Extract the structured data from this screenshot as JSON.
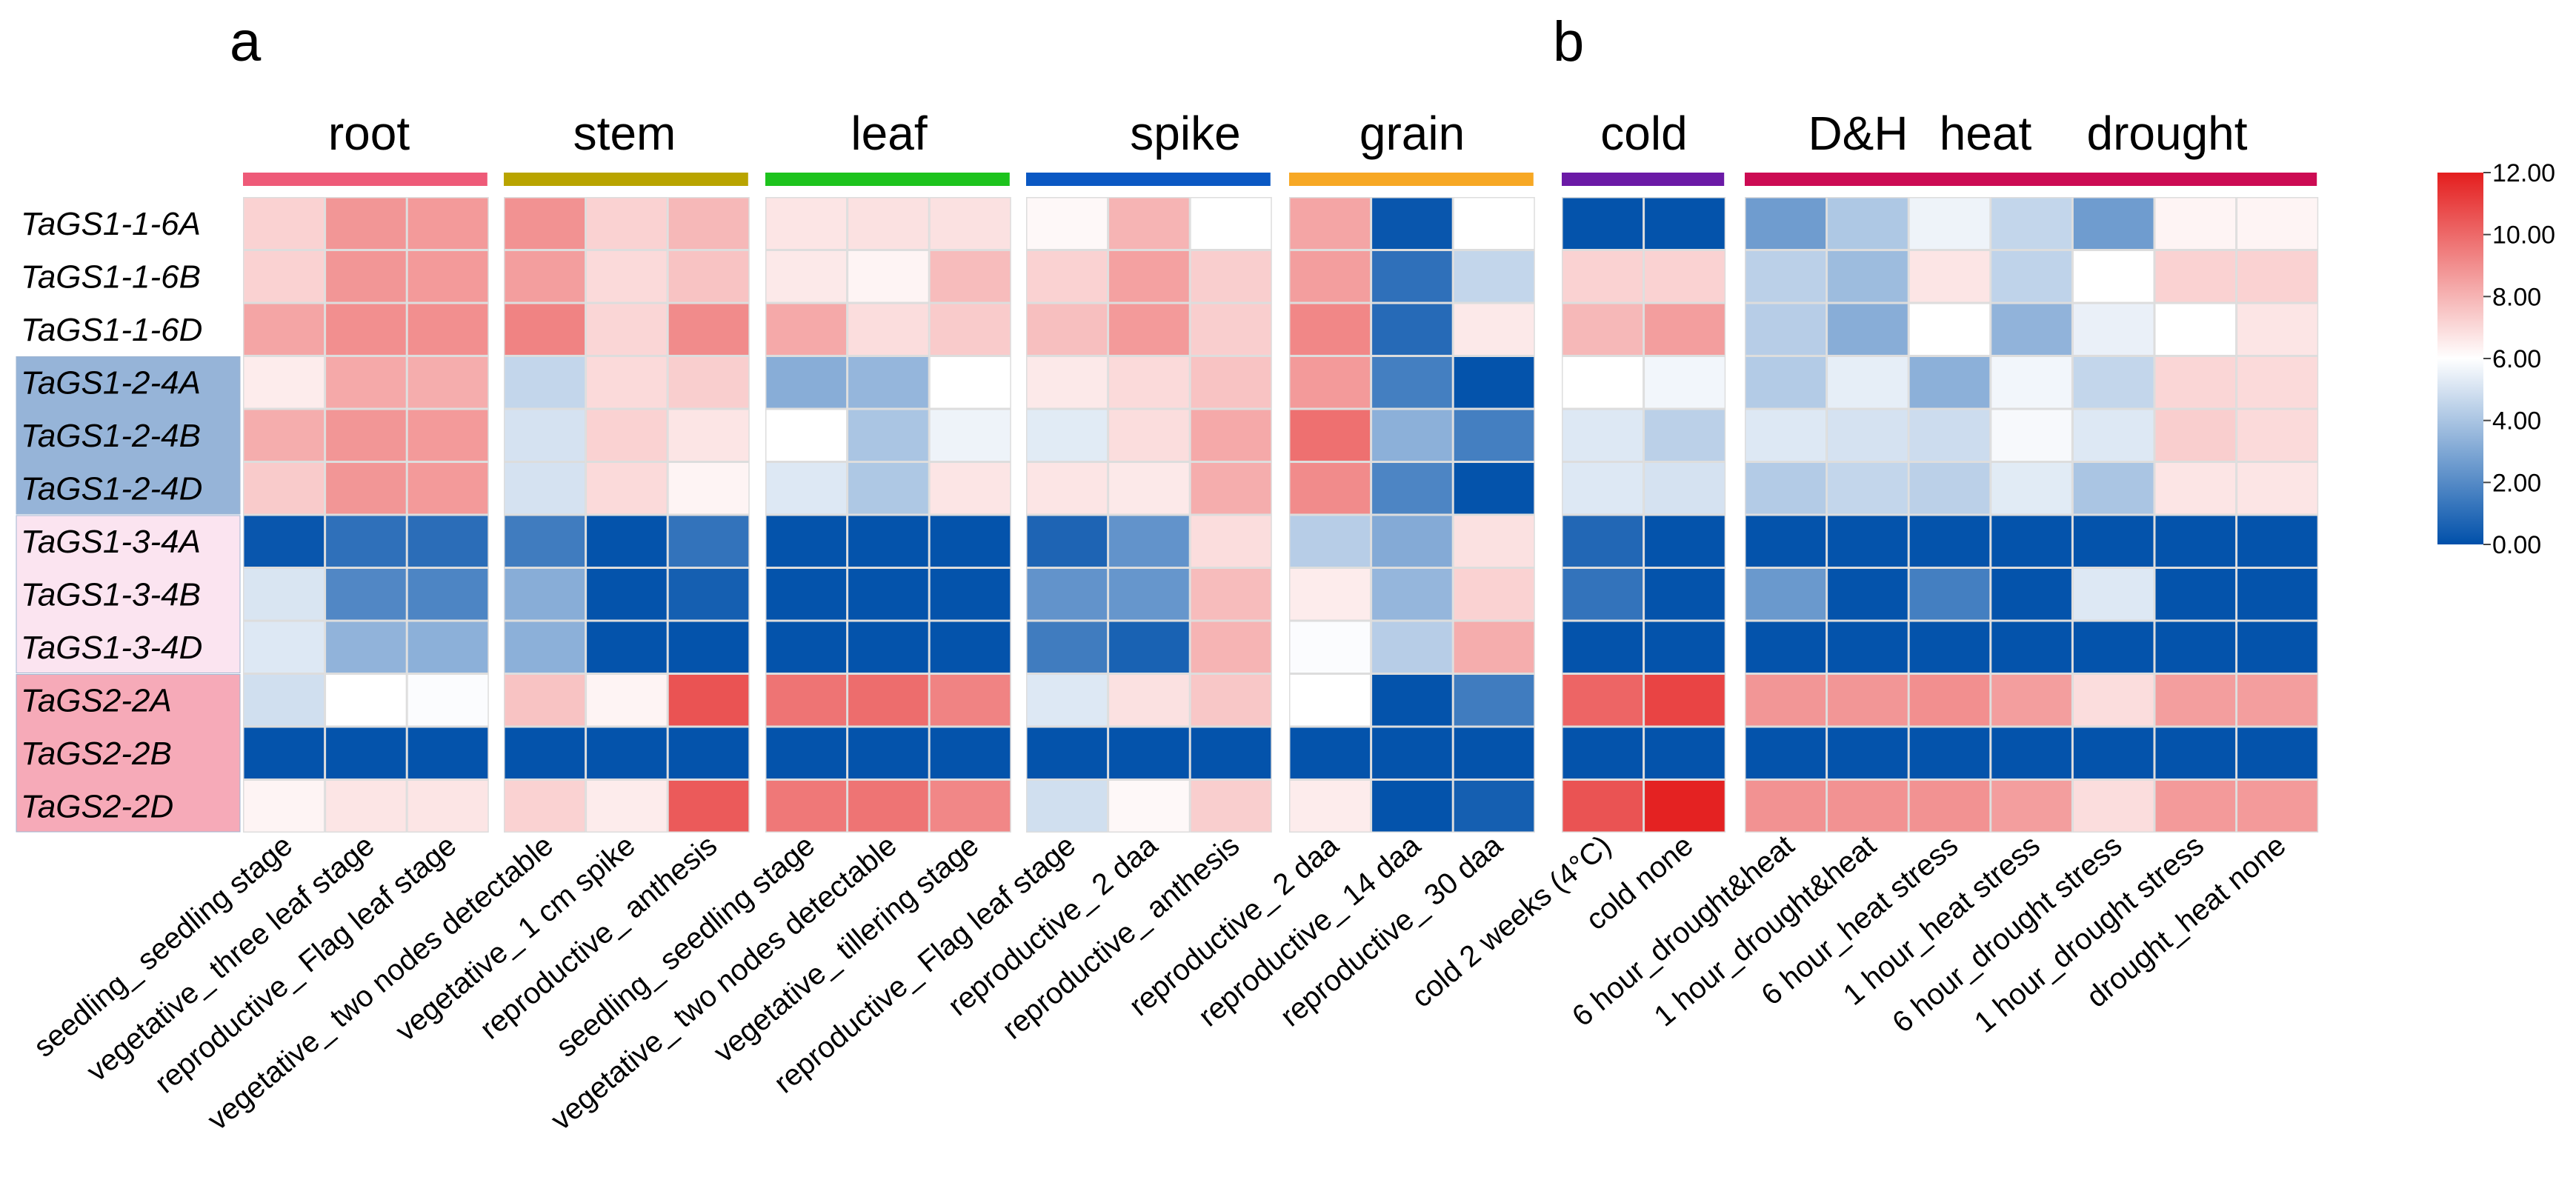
{
  "panels": [
    "a",
    "b"
  ],
  "colors": {
    "low": "#0050aa",
    "mid": "#ffffff",
    "high": "#e41e1e",
    "cell_border": "#dddddd"
  },
  "groups": [
    {
      "label": "root",
      "color": "#ee5a78",
      "cols": [
        0,
        2
      ]
    },
    {
      "label": "stem",
      "color": "#b9a400",
      "cols": [
        3,
        5
      ]
    },
    {
      "label": "leaf",
      "color": "#1dc31d",
      "cols": [
        6,
        8
      ]
    },
    {
      "label": "spike",
      "color": "#0a58c3",
      "cols": [
        9,
        11
      ]
    },
    {
      "label": "grain",
      "color": "#f7a825",
      "cols": [
        12,
        14
      ]
    },
    {
      "label": "cold",
      "color": "#6b1aa6",
      "cols": [
        15,
        16
      ]
    },
    {
      "label": "D&H",
      "color": "#cc0b53",
      "cols": [
        17,
        23
      ]
    },
    {
      "label": "heat",
      "color": "#cc0b53",
      "cols": [
        17,
        23
      ]
    },
    {
      "label": "drought",
      "color": "#cc0b53",
      "cols": [
        17,
        23
      ]
    }
  ],
  "gene_groups": [
    {
      "rows": [
        3,
        5
      ],
      "color": "#96b4d8"
    },
    {
      "rows": [
        6,
        8
      ],
      "color": "#fbe4f0"
    },
    {
      "rows": [
        9,
        11
      ],
      "color": "#f6aab8"
    }
  ],
  "chart_data": {
    "type": "heatmap",
    "rows": [
      "TaGS1-1-6A",
      "TaGS1-1-6B",
      "TaGS1-1-6D",
      "TaGS1-2-4A",
      "TaGS1-2-4B",
      "TaGS1-2-4D",
      "TaGS1-3-4A",
      "TaGS1-3-4B",
      "TaGS1-3-4D",
      "TaGS2-2A",
      "TaGS2-2B",
      "TaGS2-2D"
    ],
    "columns": [
      "seedling_ seedling stage",
      "vegetative_ three leaf stage",
      "reproductive_ Flag leaf stage",
      "vegetative_ two nodes detectable",
      "vegetative_ 1 cm spike",
      "reproductive_ anthesis",
      "seedling_ seedling stage",
      "vegetative_ two nodes detectable",
      "vegetative_ tillering stage",
      "reproductive_ Flag leaf stage",
      "reproductive_ 2 daa",
      "reproductive_ anthesis",
      "reproductive_ 2 daa",
      "reproductive_ 14 daa",
      "reproductive_ 30 daa",
      "cold 2 weeks (4°C)",
      "cold none",
      "6 hour_drought&heat",
      "1 hour_drought&heat",
      "6 hour_heat stress",
      "1 hour_heat stress",
      "6 hour_drought stress",
      "1 hour_drought stress",
      "drought_heat none"
    ],
    "values": [
      [
        7.2,
        8.8,
        8.7,
        8.9,
        7.2,
        7.9,
        6.7,
        6.8,
        6.8,
        6.2,
        8.0,
        6.0,
        8.4,
        0.2,
        6.0,
        0.1,
        0.1,
        2.6,
        4.1,
        5.6,
        4.6,
        2.6,
        6.3,
        6.3
      ],
      [
        7.2,
        8.8,
        8.7,
        8.6,
        7.0,
        7.6,
        6.6,
        6.3,
        7.8,
        7.2,
        8.5,
        7.3,
        8.6,
        1.1,
        4.6,
        7.2,
        7.2,
        4.4,
        3.7,
        6.7,
        4.5,
        6.0,
        7.2,
        7.2
      ],
      [
        8.4,
        9.0,
        9.0,
        9.3,
        7.1,
        9.1,
        8.3,
        6.9,
        7.4,
        7.7,
        8.7,
        7.3,
        9.2,
        0.9,
        6.6,
        7.9,
        8.6,
        4.3,
        3.2,
        6.0,
        3.4,
        5.5,
        6.0,
        6.7
      ],
      [
        6.5,
        8.3,
        8.2,
        4.6,
        7.0,
        7.3,
        3.2,
        3.5,
        6.0,
        6.6,
        7.0,
        7.6,
        8.7,
        1.6,
        0.1,
        6.0,
        5.7,
        4.2,
        5.4,
        3.3,
        5.7,
        4.6,
        7.1,
        7.0
      ],
      [
        8.2,
        8.8,
        8.7,
        5.0,
        7.2,
        6.7,
        6.0,
        4.0,
        5.6,
        5.3,
        6.9,
        8.3,
        9.8,
        3.3,
        1.6,
        5.2,
        4.4,
        5.2,
        5.0,
        4.8,
        5.8,
        5.2,
        7.3,
        7.0
      ],
      [
        7.4,
        8.8,
        8.7,
        5.0,
        7.0,
        6.3,
        5.2,
        4.1,
        6.7,
        6.7,
        6.6,
        8.2,
        9.1,
        1.8,
        0.1,
        5.2,
        5.0,
        4.2,
        4.6,
        4.4,
        5.3,
        4.0,
        6.7,
        6.7
      ],
      [
        0.2,
        1.1,
        1.0,
        1.5,
        0.1,
        1.2,
        0.1,
        0.1,
        0.1,
        0.7,
        2.3,
        6.9,
        4.3,
        3.1,
        6.8,
        0.8,
        0.1,
        0.1,
        0.1,
        0.1,
        0.1,
        0.1,
        0.1,
        0.1
      ],
      [
        5.1,
        1.9,
        1.8,
        3.2,
        0.1,
        0.5,
        0.1,
        0.1,
        0.1,
        2.3,
        2.4,
        7.8,
        6.5,
        3.5,
        7.2,
        1.2,
        0.1,
        2.5,
        0.1,
        1.6,
        0.1,
        5.2,
        0.1,
        0.1
      ],
      [
        5.2,
        3.4,
        3.3,
        3.3,
        0.1,
        0.1,
        0.1,
        0.1,
        0.1,
        1.5,
        0.6,
        8.0,
        5.9,
        4.3,
        8.2,
        0.1,
        0.1,
        0.1,
        0.1,
        0.1,
        0.1,
        0.1,
        0.1,
        0.1
      ],
      [
        4.9,
        6.0,
        5.9,
        7.6,
        6.3,
        10.6,
        9.7,
        9.9,
        9.3,
        5.2,
        6.8,
        7.5,
        6.0,
        0.1,
        1.5,
        10.1,
        11.0,
        8.8,
        8.8,
        9.0,
        8.6,
        6.9,
        8.6,
        8.6
      ],
      [
        0.1,
        0.1,
        0.1,
        0.1,
        0.1,
        0.1,
        0.1,
        0.1,
        0.1,
        0.1,
        0.1,
        0.1,
        0.1,
        0.1,
        0.1,
        0.1,
        0.1,
        0.1,
        0.1,
        0.1,
        0.1,
        0.1,
        0.1,
        0.1
      ],
      [
        6.3,
        6.7,
        6.7,
        7.2,
        6.5,
        10.4,
        9.6,
        9.7,
        9.2,
        4.9,
        6.2,
        7.3,
        6.5,
        0.1,
        0.5,
        10.6,
        11.9,
        8.9,
        8.9,
        8.9,
        8.6,
        6.9,
        8.7,
        8.7
      ]
    ],
    "legend": {
      "min": 0,
      "max": 12,
      "ticks": [
        "12.00",
        "10.00",
        "8.00",
        "6.00",
        "4.00",
        "2.00",
        "0.00"
      ]
    }
  }
}
